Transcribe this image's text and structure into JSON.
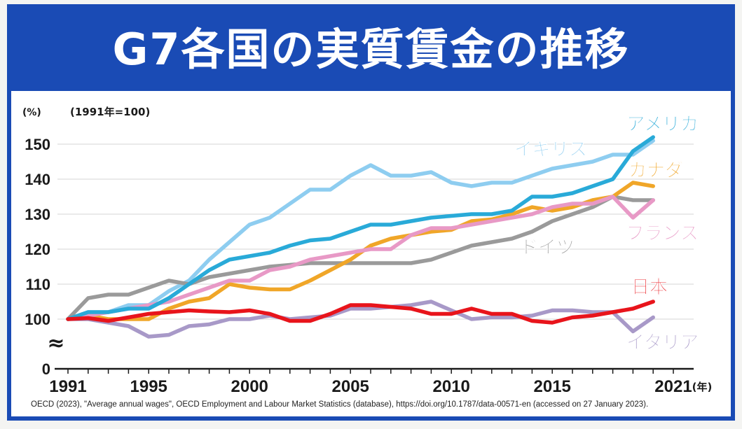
{
  "title": "G7各国の実質賃金の推移",
  "source": "OECD (2023), \"Average annual wages\", OECD Employment and Labour Market Statistics (database), https://doi.org/10.1787/data-00571-en (accessed on 27 January 2023).",
  "chart_data": {
    "type": "line",
    "title": "G7各国の実質賃金の推移",
    "ylabel": "(%)",
    "index_note": "(1991年=100)",
    "xlabel_unit": "(年)",
    "x_ticks": [
      1991,
      1995,
      2000,
      2005,
      2010,
      2015,
      2021
    ],
    "x_tick_labels": [
      "1991",
      "1995",
      "2000",
      "2005",
      "2010",
      "2015",
      "2021"
    ],
    "y_ticks": [
      100,
      110,
      120,
      130,
      140,
      150
    ],
    "y_tick_labels": [
      "100",
      "110",
      "120",
      "130",
      "140",
      "150"
    ],
    "y_zero_label": "0",
    "y_break_symbol": "≈",
    "xlim": [
      1991,
      2021
    ],
    "ylim": [
      100,
      150
    ],
    "grid": true,
    "legend": "direct labels at line ends",
    "x": [
      1991,
      1992,
      1993,
      1994,
      1995,
      1996,
      1997,
      1998,
      1999,
      2000,
      2001,
      2002,
      2003,
      2004,
      2005,
      2006,
      2007,
      2008,
      2009,
      2010,
      2011,
      2012,
      2013,
      2014,
      2015,
      2016,
      2017,
      2018,
      2019,
      2020
    ],
    "series": [
      {
        "name": "アメリカ",
        "color": "#29aad8",
        "values": [
          100,
          102,
          102,
          103,
          103,
          106,
          110,
          114,
          117,
          118,
          119,
          121,
          122.5,
          123,
          125,
          127,
          127,
          128,
          129,
          129.5,
          130,
          130,
          131,
          135,
          135,
          136,
          138,
          140,
          148,
          152
        ]
      },
      {
        "name": "イギリス",
        "color": "#8ecdf0",
        "values": [
          100,
          102,
          102,
          104,
          104,
          108,
          111,
          117,
          122,
          127,
          129,
          133,
          137,
          137,
          141,
          144,
          141,
          141,
          142,
          139,
          138,
          139,
          139,
          141,
          143,
          144,
          145,
          147,
          147,
          151
        ]
      },
      {
        "name": "カナダ",
        "color": "#f0a628",
        "values": [
          100,
          101,
          100,
          100,
          100,
          103,
          105,
          106,
          110,
          109,
          108.5,
          108.5,
          111,
          114,
          117,
          121,
          123,
          124,
          125,
          125.5,
          128,
          128.5,
          130,
          132,
          131,
          132,
          134,
          135,
          139,
          138
        ]
      },
      {
        "name": "フランス",
        "color": "#e899c6",
        "values": [
          100,
          101,
          102,
          103,
          104,
          105,
          107,
          109,
          111,
          111,
          114,
          115,
          117,
          118,
          119,
          120,
          120,
          124,
          126,
          126,
          127,
          128,
          129,
          130,
          132,
          133,
          133,
          135,
          129,
          134
        ]
      },
      {
        "name": "ドイツ",
        "color": "#9a9a9a",
        "values": [
          100,
          106,
          107,
          107,
          109,
          111,
          110,
          112,
          113,
          114,
          115,
          115.5,
          116,
          116,
          116,
          116,
          116,
          116,
          117,
          119,
          121,
          122,
          123,
          125,
          128,
          130,
          132,
          135,
          134,
          134
        ]
      },
      {
        "name": "日本",
        "color": "#e8141b",
        "values": [
          100,
          100.3,
          99.5,
          100.5,
          101.5,
          102,
          102.5,
          102.2,
          102,
          102.5,
          101.5,
          99.5,
          99.5,
          101.5,
          104,
          104,
          103.5,
          103,
          101.5,
          101.5,
          103,
          101.5,
          101.5,
          99.5,
          99,
          100.5,
          101,
          102,
          103,
          105
        ]
      },
      {
        "name": "イタリア",
        "color": "#a899c8",
        "values": [
          100,
          100,
          99,
          98,
          95,
          95.5,
          98,
          98.5,
          100,
          100,
          101,
          100,
          100.5,
          101,
          103,
          103,
          103.5,
          104,
          105,
          102.5,
          100,
          100.5,
          100.5,
          101,
          102.5,
          102.5,
          102,
          102,
          96.5,
          100.5
        ]
      }
    ]
  }
}
